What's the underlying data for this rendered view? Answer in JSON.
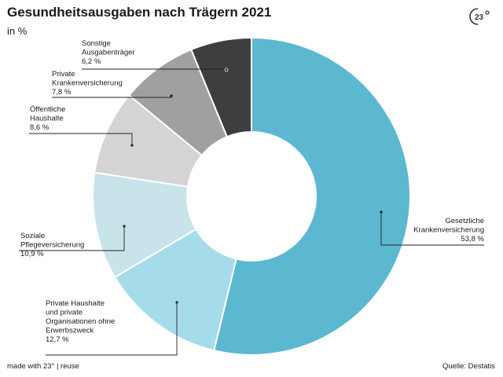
{
  "header": {
    "title": "Gesundheitsausgaben nach Trägern 2021",
    "subtitle": "in %"
  },
  "logo": {
    "icon": "23-degrees-logo-icon"
  },
  "footer": {
    "made_with": "made with 23° | reuse",
    "source": "Quelle: Destatis"
  },
  "chart_data": {
    "type": "pie",
    "title": "Gesundheitsausgaben nach Trägern 2021",
    "subtitle": "in %",
    "unit": "%",
    "donut": true,
    "slices": [
      {
        "label": [
          "Gesetzliche",
          "Krankenversicherung"
        ],
        "value": 53.8,
        "value_label": "53,8 %",
        "color": "#5bb8d0"
      },
      {
        "label": [
          "Private Haushalte",
          "und private",
          "Organisationen ohne",
          "Erwerbszweck"
        ],
        "value": 12.7,
        "value_label": "12,7 %",
        "color": "#a6dcea"
      },
      {
        "label": [
          "Soziale",
          "Pflegeversicherung"
        ],
        "value": 10.9,
        "value_label": "10,9 %",
        "color": "#c8e3ea"
      },
      {
        "label": [
          "Öffentliche",
          "Haushalte"
        ],
        "value": 8.6,
        "value_label": "8,6 %",
        "color": "#d4d4d4"
      },
      {
        "label": [
          "Private",
          "Krankenversicherung"
        ],
        "value": 7.8,
        "value_label": "7,8 %",
        "color": "#a0a0a0"
      },
      {
        "label": [
          "Sonstige",
          "Ausgabenträger"
        ],
        "value": 6.2,
        "value_label": "6,2 %",
        "color": "#3d3e40"
      }
    ]
  }
}
